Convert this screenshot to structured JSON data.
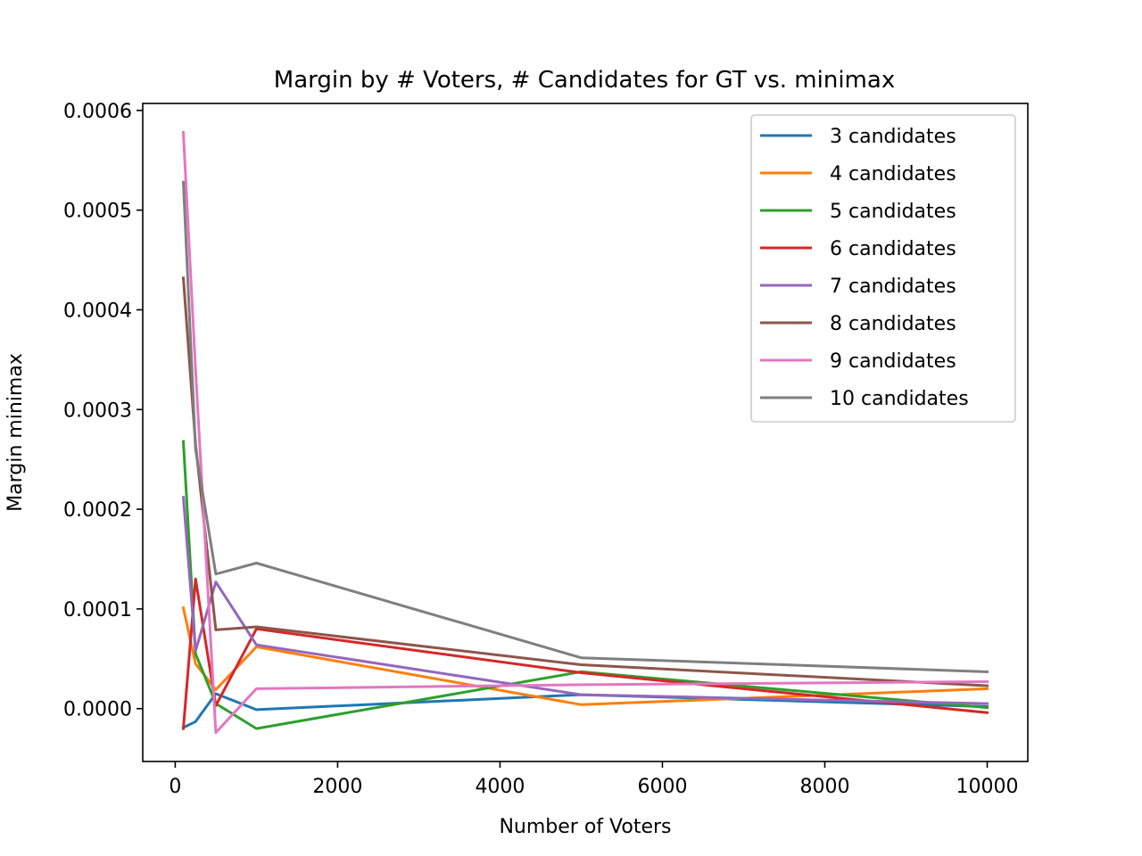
{
  "chart_data": {
    "type": "line",
    "title": "Margin by # Voters, # Candidates for GT vs. minimax",
    "xlabel": "Number of Voters",
    "ylabel": "Margin minimax",
    "x": [
      100,
      250,
      500,
      1000,
      5000,
      10000
    ],
    "xlim": [
      -400,
      10500
    ],
    "ylim": [
      -5.3e-05,
      0.000607
    ],
    "xticks": [
      0,
      2000,
      4000,
      6000,
      8000,
      10000
    ],
    "xtick_labels": [
      "0",
      "2000",
      "4000",
      "6000",
      "8000",
      "10000"
    ],
    "yticks": [
      0.0,
      0.0001,
      0.0002,
      0.0003,
      0.0004,
      0.0005,
      0.0006
    ],
    "ytick_labels": [
      "0.0000",
      "0.0001",
      "0.0002",
      "0.0003",
      "0.0004",
      "0.0005",
      "0.0006"
    ],
    "grid": false,
    "legend_position": "top-right",
    "series": [
      {
        "name": "3 candidates",
        "color": "#1f77b4",
        "values": [
          -1.9e-05,
          -1.3e-05,
          1.5e-05,
          -1e-06,
          1.4e-05,
          2e-06
        ]
      },
      {
        "name": "4 candidates",
        "color": "#ff7f0e",
        "values": [
          0.000101,
          4.5e-05,
          1.9e-05,
          6.2e-05,
          4e-06,
          2e-05
        ]
      },
      {
        "name": "5 candidates",
        "color": "#2ca02c",
        "values": [
          0.000268,
          5.5e-05,
          5e-06,
          -2e-05,
          3.7e-05,
          1e-06
        ]
      },
      {
        "name": "6 candidates",
        "color": "#d62728",
        "values": [
          -2e-05,
          0.00013,
          3e-06,
          8e-05,
          3.6e-05,
          -4e-06
        ]
      },
      {
        "name": "7 candidates",
        "color": "#9467bd",
        "values": [
          0.000212,
          5.8e-05,
          0.000127,
          6.4e-05,
          1.4e-05,
          5e-06
        ]
      },
      {
        "name": "8 candidates",
        "color": "#8c564b",
        "values": [
          0.000432,
          0.000265,
          7.9e-05,
          8.2e-05,
          4.4e-05,
          2.3e-05
        ]
      },
      {
        "name": "9 candidates",
        "color": "#e377c2",
        "values": [
          0.000578,
          0.00034,
          -2.4e-05,
          2e-05,
          2.4e-05,
          2.7e-05
        ]
      },
      {
        "name": "10 candidates",
        "color": "#7f7f7f",
        "values": [
          0.000528,
          0.00026,
          0.000135,
          0.000146,
          5.1e-05,
          3.7e-05
        ]
      }
    ]
  }
}
